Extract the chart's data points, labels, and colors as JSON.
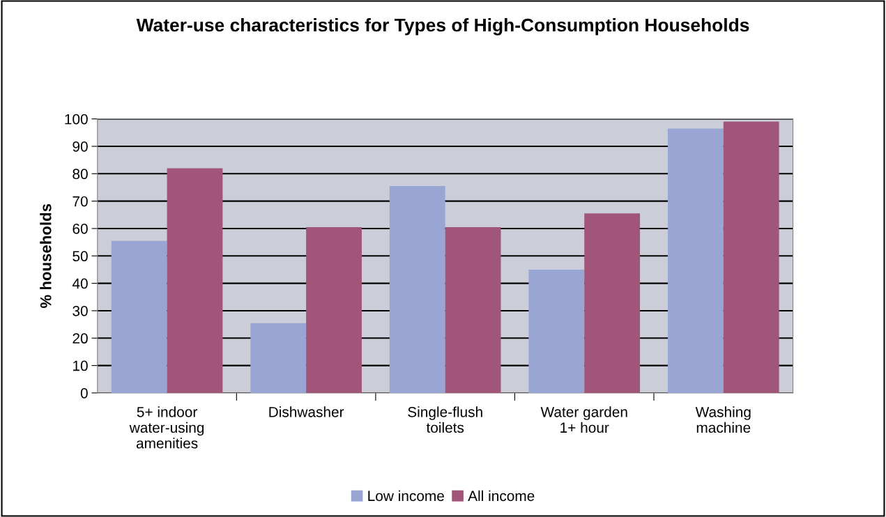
{
  "chart_data": {
    "type": "bar",
    "title": "Water-use characteristics for Types of High-Consumption Households",
    "ylabel": "% households",
    "categories": [
      "5+ indoor\nwater-using\namenities",
      "Dishwasher",
      "Single-flush\ntoilets",
      "Water garden\n1+ hour",
      "Washing\nmachine"
    ],
    "series": [
      {
        "name": "Low income",
        "color": "#99a5d3",
        "values": [
          55.5,
          25.5,
          75.5,
          45,
          96.5
        ]
      },
      {
        "name": "All income",
        "color": "#a05579",
        "values": [
          82,
          60.5,
          60.5,
          65.5,
          99
        ]
      }
    ],
    "ylim": [
      0,
      100
    ],
    "yticks": [
      0,
      10,
      20,
      30,
      40,
      50,
      60,
      70,
      80,
      90,
      100
    ],
    "grid": "y",
    "legend": "bottom"
  }
}
